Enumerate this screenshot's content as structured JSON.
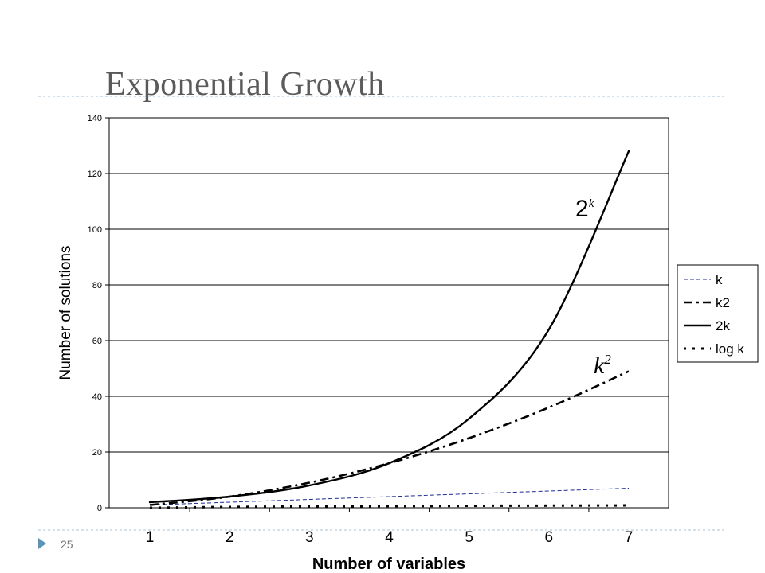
{
  "slide": {
    "title": "Exponential Growth",
    "number": "25"
  },
  "colors": {
    "accent_rule": "#a9c3d6",
    "bullet": "#5f93b6",
    "k_series": "#1f2c8f",
    "main_series": "#000000"
  },
  "chart_data": {
    "type": "line",
    "xlabel": "Number of variables",
    "ylabel": "Number of solutions",
    "x": [
      1,
      2,
      3,
      4,
      5,
      6,
      7
    ],
    "ylim": [
      0,
      140
    ],
    "yticks": [
      0,
      20,
      40,
      60,
      80,
      100,
      120,
      140
    ],
    "grid": "horizontal",
    "legend_position": "right",
    "series": [
      {
        "name": "k",
        "values": [
          1,
          2,
          3,
          4,
          5,
          6,
          7
        ],
        "style": "dashed-thin",
        "color": "#1f2c8f"
      },
      {
        "name": "k2",
        "values": [
          1,
          4,
          9,
          16,
          25,
          36,
          49
        ],
        "style": "dash-dot",
        "color": "#000000"
      },
      {
        "name": "2k",
        "values": [
          2,
          4,
          8,
          16,
          32,
          64,
          128
        ],
        "style": "solid",
        "color": "#000000"
      },
      {
        "name": "log k",
        "values": [
          0,
          0.3,
          0.48,
          0.6,
          0.7,
          0.78,
          0.85
        ],
        "style": "dotted",
        "color": "#000000"
      }
    ],
    "annotations": [
      {
        "text_base": "2",
        "text_sup": "k",
        "target": "2k"
      },
      {
        "text_base": "k",
        "text_sup": "2",
        "target": "k2"
      }
    ]
  }
}
